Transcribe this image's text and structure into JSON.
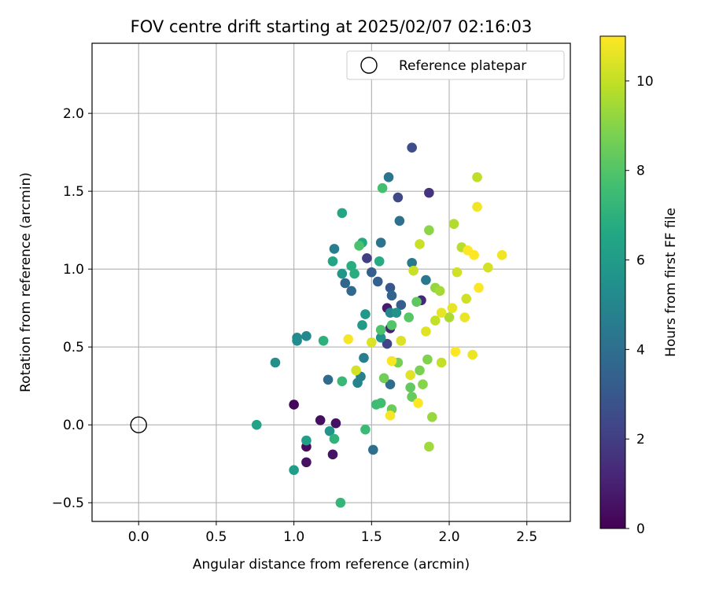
{
  "chart_data": {
    "type": "scatter",
    "title": "FOV centre drift starting at 2025/02/07 02:16:03",
    "xlabel": "Angular distance from reference (arcmin)",
    "ylabel": "Rotation from reference (arcmin)",
    "xlim": [
      -0.3,
      2.78
    ],
    "ylim": [
      -0.62,
      2.45
    ],
    "xticks": [
      0.0,
      0.5,
      1.0,
      1.5,
      2.0,
      2.5
    ],
    "xtick_labels": [
      "0.0",
      "0.5",
      "1.0",
      "1.5",
      "2.0",
      "2.5"
    ],
    "yticks": [
      -0.5,
      0.0,
      0.5,
      1.0,
      1.5,
      2.0
    ],
    "ytick_labels": [
      "−0.5",
      "0.0",
      "0.5",
      "1.0",
      "1.5",
      "2.0"
    ],
    "grid": true,
    "legend": {
      "placement": "top-right",
      "label": "Reference platepar",
      "marker": "open-circle"
    },
    "reference_point": {
      "x": 0.0,
      "y": 0.0
    },
    "colorbar": {
      "label": "Hours from first FF file",
      "colormap": "viridis",
      "range": [
        0,
        11
      ],
      "ticks": [
        0,
        2,
        4,
        6,
        8,
        10
      ],
      "tick_labels": [
        "0",
        "2",
        "4",
        "6",
        "8",
        "10"
      ]
    },
    "points": [
      {
        "x": 1.0,
        "y": 0.13,
        "c": 0.2
      },
      {
        "x": 1.08,
        "y": -0.14,
        "c": 0.3
      },
      {
        "x": 1.08,
        "y": -0.24,
        "c": 0.5
      },
      {
        "x": 1.17,
        "y": 0.03,
        "c": 0.4
      },
      {
        "x": 1.25,
        "y": -0.19,
        "c": 0.6
      },
      {
        "x": 1.27,
        "y": 0.01,
        "c": 0.5
      },
      {
        "x": 1.6,
        "y": 0.75,
        "c": 0.8
      },
      {
        "x": 1.62,
        "y": 0.62,
        "c": 1.0
      },
      {
        "x": 1.82,
        "y": 0.8,
        "c": 1.2
      },
      {
        "x": 1.87,
        "y": 1.49,
        "c": 1.6
      },
      {
        "x": 1.47,
        "y": 1.07,
        "c": 2.0
      },
      {
        "x": 1.6,
        "y": 0.52,
        "c": 2.2
      },
      {
        "x": 1.67,
        "y": 1.46,
        "c": 2.4
      },
      {
        "x": 1.76,
        "y": 1.78,
        "c": 2.6
      },
      {
        "x": 1.62,
        "y": 0.88,
        "c": 3.0
      },
      {
        "x": 1.69,
        "y": 0.77,
        "c": 3.2
      },
      {
        "x": 1.5,
        "y": 0.98,
        "c": 3.3
      },
      {
        "x": 1.54,
        "y": 0.92,
        "c": 3.4
      },
      {
        "x": 1.63,
        "y": 0.83,
        "c": 3.5
      },
      {
        "x": 1.33,
        "y": 0.91,
        "c": 3.6
      },
      {
        "x": 1.37,
        "y": 0.86,
        "c": 3.7
      },
      {
        "x": 1.22,
        "y": 0.29,
        "c": 3.8
      },
      {
        "x": 1.62,
        "y": 0.26,
        "c": 3.9
      },
      {
        "x": 1.51,
        "y": -0.16,
        "c": 4.0
      },
      {
        "x": 1.68,
        "y": 1.31,
        "c": 4.1
      },
      {
        "x": 1.56,
        "y": 1.17,
        "c": 4.2
      },
      {
        "x": 1.61,
        "y": 1.59,
        "c": 4.3
      },
      {
        "x": 1.85,
        "y": 0.93,
        "c": 4.4
      },
      {
        "x": 1.76,
        "y": 1.04,
        "c": 4.5
      },
      {
        "x": 1.26,
        "y": 1.13,
        "c": 4.6
      },
      {
        "x": 1.45,
        "y": 0.43,
        "c": 4.7
      },
      {
        "x": 1.43,
        "y": 0.31,
        "c": 4.8
      },
      {
        "x": 1.41,
        "y": 0.27,
        "c": 4.9
      },
      {
        "x": 1.62,
        "y": 0.72,
        "c": 5.0
      },
      {
        "x": 1.08,
        "y": 0.57,
        "c": 5.1
      },
      {
        "x": 1.02,
        "y": 0.56,
        "c": 5.2
      },
      {
        "x": 1.02,
        "y": 0.54,
        "c": 5.3
      },
      {
        "x": 0.88,
        "y": 0.4,
        "c": 5.4
      },
      {
        "x": 1.56,
        "y": 0.56,
        "c": 5.5
      },
      {
        "x": 1.66,
        "y": 0.72,
        "c": 5.6
      },
      {
        "x": 1.23,
        "y": -0.04,
        "c": 5.7
      },
      {
        "x": 1.31,
        "y": 0.97,
        "c": 5.8
      },
      {
        "x": 1.46,
        "y": 0.71,
        "c": 5.9
      },
      {
        "x": 1.44,
        "y": 0.64,
        "c": 6.0
      },
      {
        "x": 1.0,
        "y": -0.29,
        "c": 6.1
      },
      {
        "x": 1.08,
        "y": -0.1,
        "c": 6.2
      },
      {
        "x": 0.76,
        "y": 0.0,
        "c": 6.3
      },
      {
        "x": 1.25,
        "y": 1.05,
        "c": 6.4
      },
      {
        "x": 1.31,
        "y": 1.36,
        "c": 6.5
      },
      {
        "x": 1.44,
        "y": 1.17,
        "c": 6.6
      },
      {
        "x": 1.55,
        "y": 1.05,
        "c": 6.7
      },
      {
        "x": 1.37,
        "y": 1.02,
        "c": 6.8
      },
      {
        "x": 1.39,
        "y": 0.97,
        "c": 6.9
      },
      {
        "x": 1.19,
        "y": 0.54,
        "c": 7.0
      },
      {
        "x": 1.26,
        "y": -0.09,
        "c": 7.1
      },
      {
        "x": 1.3,
        "y": -0.5,
        "c": 7.2
      },
      {
        "x": 1.31,
        "y": 0.28,
        "c": 7.3
      },
      {
        "x": 1.46,
        "y": -0.03,
        "c": 7.4
      },
      {
        "x": 1.53,
        "y": 0.13,
        "c": 7.5
      },
      {
        "x": 1.56,
        "y": 0.14,
        "c": 7.6
      },
      {
        "x": 1.57,
        "y": 1.52,
        "c": 7.7
      },
      {
        "x": 1.42,
        "y": 1.15,
        "c": 7.8
      },
      {
        "x": 1.56,
        "y": 0.61,
        "c": 7.9
      },
      {
        "x": 1.63,
        "y": 0.64,
        "c": 8.0
      },
      {
        "x": 1.74,
        "y": 0.69,
        "c": 8.1
      },
      {
        "x": 1.79,
        "y": 0.79,
        "c": 8.2
      },
      {
        "x": 1.75,
        "y": 0.24,
        "c": 8.3
      },
      {
        "x": 1.76,
        "y": 0.18,
        "c": 8.4
      },
      {
        "x": 1.63,
        "y": 0.1,
        "c": 8.5
      },
      {
        "x": 1.58,
        "y": 0.3,
        "c": 8.6
      },
      {
        "x": 1.67,
        "y": 0.4,
        "c": 8.7
      },
      {
        "x": 1.81,
        "y": 0.35,
        "c": 8.8
      },
      {
        "x": 1.86,
        "y": 0.42,
        "c": 8.9
      },
      {
        "x": 1.83,
        "y": 0.26,
        "c": 9.0
      },
      {
        "x": 1.87,
        "y": 1.25,
        "c": 9.1
      },
      {
        "x": 1.91,
        "y": 0.88,
        "c": 9.2
      },
      {
        "x": 1.89,
        "y": 0.05,
        "c": 9.3
      },
      {
        "x": 1.87,
        "y": -0.14,
        "c": 9.4
      },
      {
        "x": 1.94,
        "y": 0.86,
        "c": 9.5
      },
      {
        "x": 2.0,
        "y": 0.69,
        "c": 9.6
      },
      {
        "x": 2.03,
        "y": 1.29,
        "c": 9.7
      },
      {
        "x": 2.08,
        "y": 1.14,
        "c": 9.8
      },
      {
        "x": 2.18,
        "y": 1.59,
        "c": 9.9
      },
      {
        "x": 1.95,
        "y": 0.4,
        "c": 10.0
      },
      {
        "x": 1.91,
        "y": 0.67,
        "c": 10.0
      },
      {
        "x": 1.81,
        "y": 1.16,
        "c": 10.1
      },
      {
        "x": 1.77,
        "y": 0.99,
        "c": 10.1
      },
      {
        "x": 2.05,
        "y": 0.98,
        "c": 10.2
      },
      {
        "x": 2.11,
        "y": 0.81,
        "c": 10.2
      },
      {
        "x": 2.25,
        "y": 1.01,
        "c": 10.3
      },
      {
        "x": 1.4,
        "y": 0.35,
        "c": 10.3
      },
      {
        "x": 1.5,
        "y": 0.53,
        "c": 10.4
      },
      {
        "x": 1.69,
        "y": 0.54,
        "c": 10.4
      },
      {
        "x": 1.75,
        "y": 0.32,
        "c": 10.5
      },
      {
        "x": 1.85,
        "y": 0.6,
        "c": 10.5
      },
      {
        "x": 1.95,
        "y": 0.72,
        "c": 10.6
      },
      {
        "x": 2.02,
        "y": 0.75,
        "c": 10.6
      },
      {
        "x": 2.1,
        "y": 0.69,
        "c": 10.7
      },
      {
        "x": 2.15,
        "y": 0.45,
        "c": 10.7
      },
      {
        "x": 2.18,
        "y": 1.4,
        "c": 10.8
      },
      {
        "x": 2.34,
        "y": 1.09,
        "c": 10.8
      },
      {
        "x": 1.35,
        "y": 0.55,
        "c": 10.9
      },
      {
        "x": 1.62,
        "y": 0.06,
        "c": 10.9
      },
      {
        "x": 1.63,
        "y": 0.41,
        "c": 10.9
      },
      {
        "x": 1.8,
        "y": 0.14,
        "c": 11.0
      },
      {
        "x": 2.04,
        "y": 0.47,
        "c": 11.0
      },
      {
        "x": 2.16,
        "y": 1.09,
        "c": 11.0
      },
      {
        "x": 2.19,
        "y": 0.88,
        "c": 11.0
      },
      {
        "x": 2.12,
        "y": 1.12,
        "c": 11.0
      }
    ]
  }
}
